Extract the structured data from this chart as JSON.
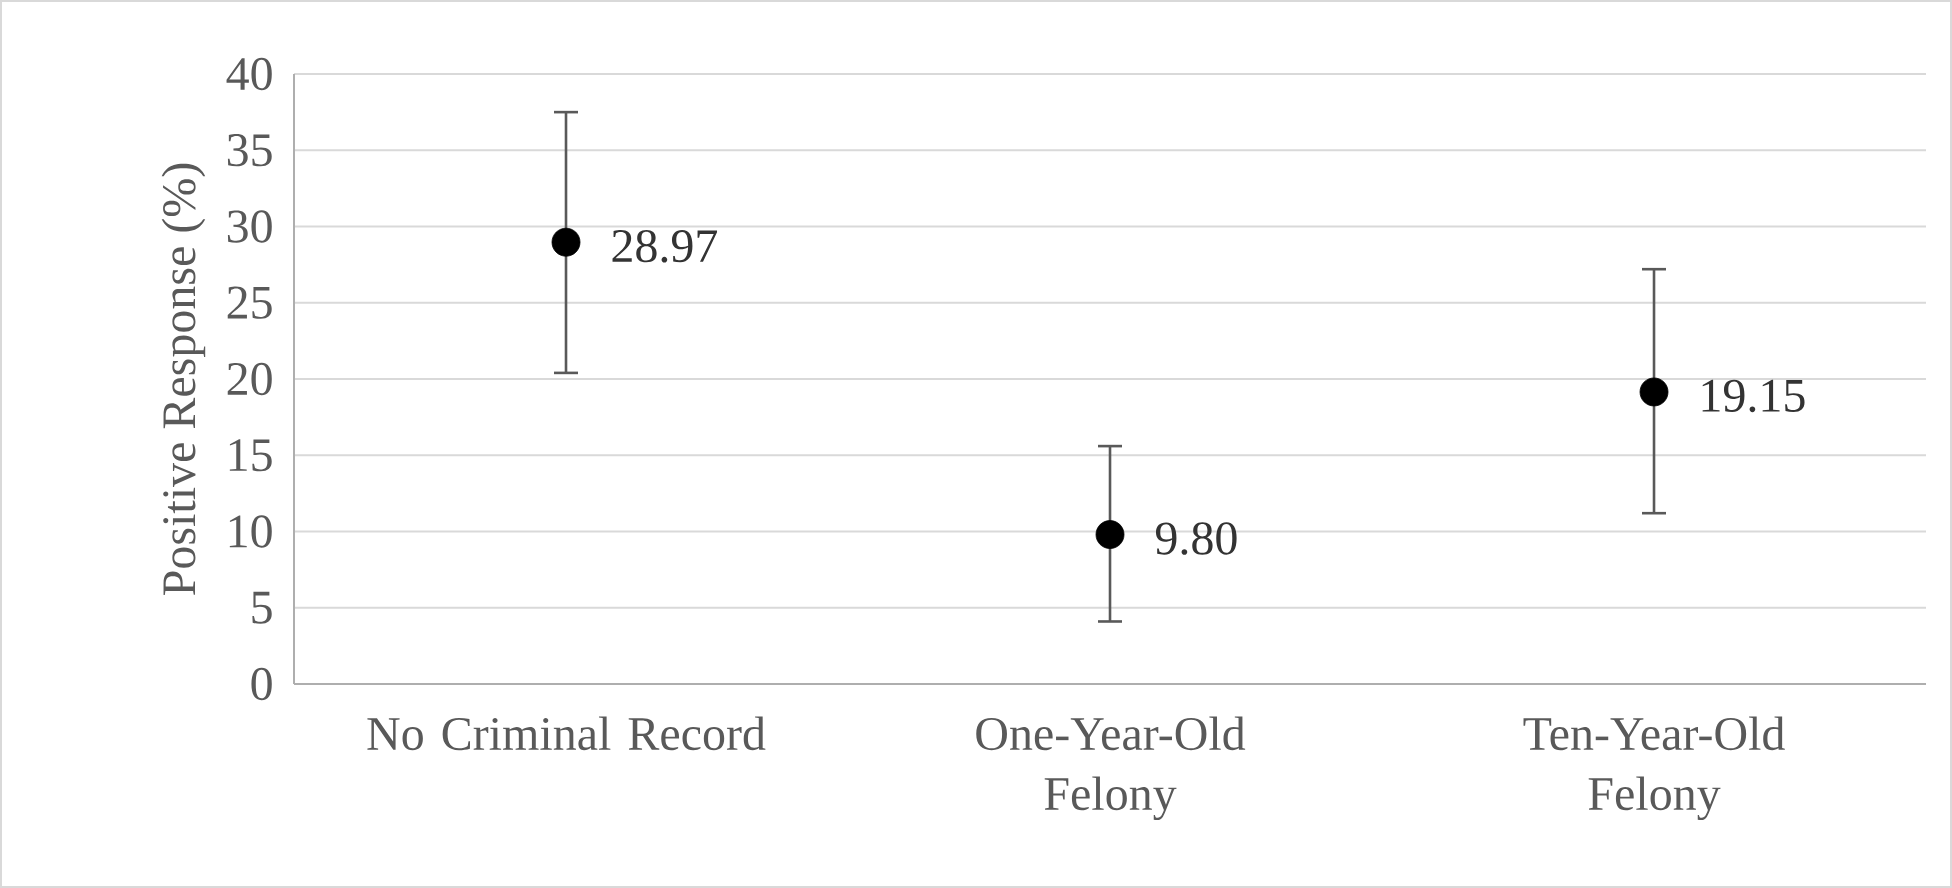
{
  "chart_data": {
    "type": "scatter",
    "ylabel": "Positive Response (%)",
    "categories": [
      "No Criminal Record",
      "One-Year-Old Felony",
      "Ten-Year-Old Felony"
    ],
    "values": [
      28.97,
      9.8,
      19.15
    ],
    "value_labels": [
      "28.97",
      "9.80",
      "19.15"
    ],
    "errors": [
      [
        20.4,
        37.5
      ],
      [
        4.1,
        15.6
      ],
      [
        11.2,
        27.2
      ]
    ],
    "color": "#000000",
    "ylim": [
      0,
      40
    ],
    "yticks": [
      0,
      5,
      10,
      15,
      20,
      25,
      30,
      35,
      40
    ],
    "grid": "y"
  }
}
